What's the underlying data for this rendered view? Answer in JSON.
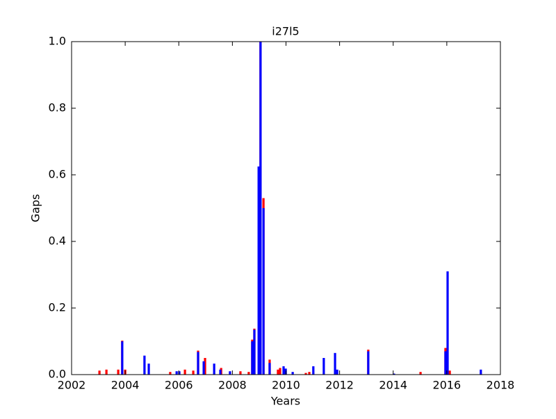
{
  "chart_data": {
    "type": "bar",
    "title": "i27l5",
    "x_label": "Years",
    "y_label": "Gaps",
    "xlim": [
      2002,
      2018
    ],
    "xticks": [
      2002,
      2004,
      2006,
      2008,
      2010,
      2012,
      2014,
      2016,
      2018
    ],
    "ylim": [
      0,
      1
    ],
    "yticks": [
      {
        "value": 0,
        "label": "0.0"
      },
      0.2,
      0.4,
      0.6,
      0.8,
      {
        "value": 1,
        "label": "1.0"
      }
    ],
    "grid": false,
    "series": [
      {
        "color": "#ff0000",
        "x": [
          2003.04,
          2003.3,
          2003.74,
          2003.89,
          2004.0,
          2005.68,
          2006.23,
          2006.54,
          2006.72,
          2006.98,
          2007.58,
          2008.3,
          2008.61,
          2008.74,
          2008.82,
          2009.05,
          2009.16,
          2009.39,
          2009.7,
          2009.78,
          2010.74,
          2010.87,
          2013.07,
          2015.02,
          2015.95,
          2016.11
        ],
        "values": [
          0.012,
          0.015,
          0.015,
          0.102,
          0.015,
          0.008,
          0.015,
          0.012,
          0.072,
          0.05,
          0.02,
          0.01,
          0.008,
          0.105,
          0.138,
          1.0,
          0.53,
          0.045,
          0.015,
          0.02,
          0.005,
          0.008,
          0.075,
          0.008,
          0.08,
          0.012
        ]
      },
      {
        "color": "#0000ff",
        "x": [
          2003.89,
          2004.72,
          2004.88,
          2005.92,
          2006.02,
          2006.72,
          2006.93,
          2007.32,
          2007.55,
          2007.91,
          2008.74,
          2008.82,
          2008.98,
          2009.05,
          2009.16,
          2009.39,
          2009.91,
          2009.99,
          2010.25,
          2011.02,
          2011.41,
          2011.83,
          2011.91,
          2013.07,
          2014.03,
          2015.95,
          2016.03,
          2017.27
        ],
        "values": [
          0.1,
          0.057,
          0.033,
          0.01,
          0.01,
          0.068,
          0.04,
          0.033,
          0.015,
          0.01,
          0.1,
          0.135,
          0.625,
          1.0,
          0.5,
          0.035,
          0.025,
          0.018,
          0.008,
          0.025,
          0.05,
          0.065,
          0.015,
          0.07,
          0.003,
          0.07,
          0.31,
          0.015
        ]
      }
    ]
  }
}
